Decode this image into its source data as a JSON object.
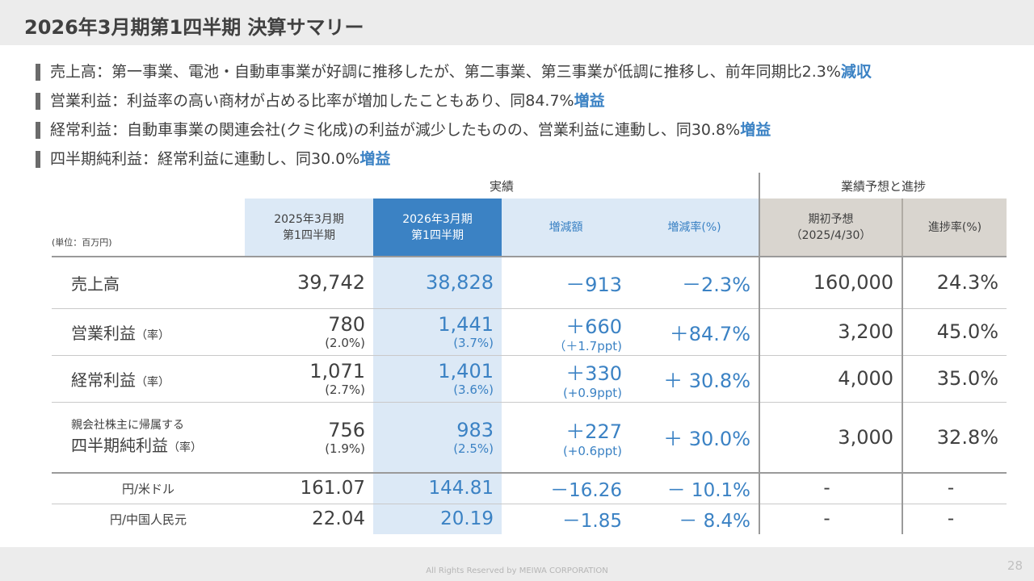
{
  "header": {
    "title": "2026年3月期第1四半期 決算サマリー"
  },
  "bullets": [
    {
      "text": "売上高：第一事業、電池・自動車事業が好調に推移したが、第二事業、第三事業が低調に推移し、前年同期比2.3%",
      "highlight": "減収"
    },
    {
      "text": "営業利益：利益率の高い商材が占める比率が増加したこともあり、同84.7%",
      "highlight": "増益"
    },
    {
      "text": "経常利益：自動車事業の関連会社(クミ化成)の利益が減少したものの、営業利益に連動し、同30.8%",
      "highlight": "増益"
    },
    {
      "text": "四半期純利益：経常利益に連動し、同30.0%",
      "highlight": "増益"
    }
  ],
  "table": {
    "group_actual": "実績",
    "group_forecast": "業績予想と進捗",
    "unit": "(単位：百万円)",
    "columns": {
      "prev": [
        "2025年3月期",
        "第1四半期"
      ],
      "curr": [
        "2026年3月期",
        "第1四半期"
      ],
      "change": "増減額",
      "change_rate": "増減率(%)",
      "forecast": [
        "期初予想",
        "（2025/4/30）"
      ],
      "progress": "進捗率(%)"
    },
    "rows": {
      "sales": {
        "label": "売上高",
        "prev": "39,742",
        "curr": "38,828",
        "change": "－913",
        "rate": "－2.3%",
        "forecast": "160,000",
        "progress": "24.3%"
      },
      "op": {
        "label": "営業利益",
        "suffix": "（率）",
        "prev": "780",
        "prev_sub": "(2.0%)",
        "curr": "1,441",
        "curr_sub": "(3.7%)",
        "change": "＋660",
        "change_sub": "（＋1.7ppt)",
        "rate": "＋84.7%",
        "forecast": "3,200",
        "progress": "45.0%"
      },
      "ord": {
        "label": "経常利益",
        "suffix": "（率）",
        "prev": "1,071",
        "prev_sub": "(2.7%)",
        "curr": "1,401",
        "curr_sub": "(3.6%)",
        "change": "＋330",
        "change_sub": "(+0.9ppt)",
        "rate": "＋ 30.8%",
        "forecast": "4,000",
        "progress": "35.0%"
      },
      "net": {
        "pre": "親会社株主に帰属する",
        "label": "四半期純利益",
        "suffix": "（率）",
        "prev": "756",
        "prev_sub": "(1.9%)",
        "curr": "983",
        "curr_sub": "(2.5%)",
        "change": "＋227",
        "change_sub": "(+0.6ppt)",
        "rate": "＋ 30.0%",
        "forecast": "3,000",
        "progress": "32.8%"
      },
      "usd": {
        "label": "円/米ドル",
        "prev": "161.07",
        "curr": "144.81",
        "change": "－16.26",
        "rate": "－ 10.1%",
        "forecast": "-",
        "progress": "-"
      },
      "cny": {
        "label": "円/中国人民元",
        "prev": "22.04",
        "curr": "20.19",
        "change": "－1.85",
        "rate": "－ 8.4%",
        "forecast": "-",
        "progress": "-"
      }
    }
  },
  "footer": {
    "copyright": "All Rights Reserved by MEIWA CORPORATION",
    "page": "28"
  },
  "colors": {
    "accent": "#3b82c4",
    "accent_light": "#dce9f6",
    "forecast_bg": "#d9d5cf",
    "header_bg": "#ececec"
  }
}
